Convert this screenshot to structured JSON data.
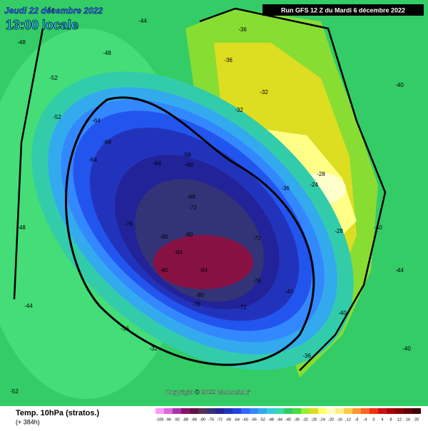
{
  "header": {
    "date": "Jeudi 22 décembre 2022",
    "time": "13:00 locale",
    "run": "Run GFS 12 Z du Mardi 6 décembre 2022"
  },
  "copyright": "Copyright © 2022 Meteociel.fr",
  "footer": {
    "title": "Temp. 10hPa (stratos.)",
    "lead": "(+ 384h)"
  },
  "scale": {
    "labels": [
      -100,
      -96,
      -92,
      -88,
      -84,
      -80,
      -76,
      -72,
      -68,
      -64,
      -60,
      -56,
      -52,
      -48,
      -44,
      -40,
      -36,
      -32,
      -28,
      -24,
      -20,
      -16,
      -12,
      -8,
      -4,
      0,
      4,
      8,
      12,
      16,
      20
    ],
    "colors": [
      "#ff99ff",
      "#dd66dd",
      "#aa33aa",
      "#881166",
      "#661144",
      "#553355",
      "#333377",
      "#222299",
      "#2233bb",
      "#2244dd",
      "#3366ff",
      "#3388ff",
      "#33aaee",
      "#33ccdd",
      "#33ddaa",
      "#33cc66",
      "#44dd44",
      "#99ee33",
      "#dddd22",
      "#ffff66",
      "#ffffbb",
      "#ffee88",
      "#ffcc44",
      "#ff9933",
      "#ff6622",
      "#ee3311",
      "#cc1111",
      "#aa0000",
      "#880000",
      "#660000",
      "#440000"
    ]
  },
  "contour_labels": [
    -48,
    -44,
    -44,
    -48,
    -52,
    -52,
    -64,
    -68,
    -64,
    -64,
    -60,
    -56,
    -68,
    -72,
    -76,
    -80,
    -80,
    -84,
    -84,
    -80,
    -80,
    -76,
    -72,
    -76,
    -72,
    -40,
    -36,
    -36,
    -32,
    -32,
    -28,
    -24,
    -28,
    -36,
    -40,
    -40,
    -44,
    -44,
    -36,
    -32,
    -36,
    -40,
    -52,
    -40,
    -48
  ]
}
